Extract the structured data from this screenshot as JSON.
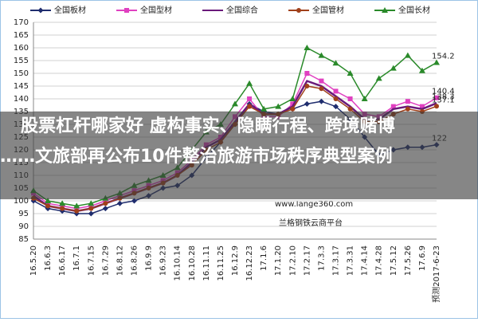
{
  "chart_data": {
    "type": "line",
    "categories": [
      "16.5.20",
      "16.6.3",
      "16.6.17",
      "16.7.1",
      "16.7.15",
      "16.7.29",
      "16.8.12",
      "16.8.26",
      "16.9.9",
      "16.9.23",
      "16.10.14",
      "16.10.28",
      "16.11.11",
      "16.11.25",
      "16.12.9",
      "16.12.23",
      "17.1.6",
      "17.1.20",
      "17.2.10",
      "17.2.17",
      "17.3.3",
      "17.3.17",
      "17.3.31",
      "17.4.14",
      "17.4.28",
      "17.5.12",
      "17.5.26",
      "17.6.9",
      "预测2017-6-23"
    ],
    "series": [
      {
        "name": "全国板材",
        "color": "#1f2d6e",
        "marker": "diamond",
        "values": [
          100,
          97,
          96,
          95,
          95,
          97,
          99,
          100,
          102,
          105,
          106,
          110,
          117,
          123,
          130,
          138,
          135,
          134,
          136,
          138,
          139,
          137,
          132,
          125,
          118,
          120,
          121,
          121,
          122
        ]
      },
      {
        "name": "全国型材",
        "color": "#e040c0",
        "marker": "square",
        "values": [
          103,
          99,
          98,
          97,
          98,
          100,
          102,
          104,
          106,
          108,
          111,
          116,
          122,
          125,
          133,
          140,
          133,
          133,
          138,
          150,
          147,
          143,
          140,
          134,
          133,
          137,
          139,
          137,
          140.4
        ]
      },
      {
        "name": "全国综合",
        "color": "#6a1a7a",
        "marker": "none",
        "values": [
          102,
          98,
          97,
          96,
          97,
          99,
          101,
          103,
          105,
          107,
          110,
          115,
          121,
          124,
          131,
          138,
          134,
          134,
          137,
          147,
          145,
          141,
          137,
          132,
          132,
          136,
          137,
          136,
          138.3
        ]
      },
      {
        "name": "全国管材",
        "color": "#a0401a",
        "marker": "circle",
        "values": [
          101,
          98,
          97,
          96,
          97,
          99,
          101,
          103,
          105,
          107,
          110,
          114,
          120,
          123,
          130,
          137,
          134,
          134,
          136,
          145,
          144,
          140,
          136,
          131,
          131,
          134,
          136,
          135,
          137.1
        ]
      },
      {
        "name": "全国长材",
        "color": "#2a8a2a",
        "marker": "triangle",
        "values": [
          104,
          100,
          99,
          98,
          99,
          101,
          103,
          106,
          108,
          110,
          113,
          120,
          127,
          130,
          138,
          146,
          136,
          137,
          140,
          160,
          157,
          154,
          150,
          140,
          148,
          152,
          157,
          151,
          154.2
        ]
      }
    ],
    "ylim": [
      85,
      170
    ],
    "yticks": [
      85,
      90,
      95,
      100,
      105,
      110,
      115,
      120,
      125,
      130,
      135,
      140,
      145,
      150,
      155,
      160,
      165,
      170
    ],
    "grid": true,
    "watermarks": [
      "www.lange360.com",
      "兰格钢铁云商平台"
    ]
  },
  "overlay": {
    "headline": [
      "股票杠杆哪家好 虚构事实、隐瞒行程、跨境赌博",
      "……文旅部再公布10件整治旅游市场秩序典型案例"
    ]
  }
}
